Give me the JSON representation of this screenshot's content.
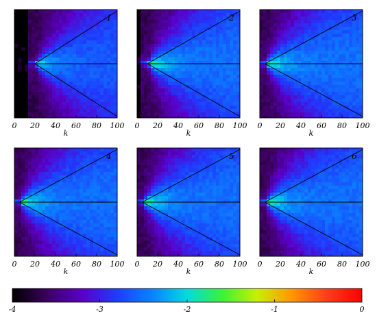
{
  "chart_data": {
    "type": "heatmap",
    "layout": "2x3 panel grid with shared colorbar",
    "panels": [
      {
        "label": "1",
        "xlabel": "k",
        "xticks": [
          "0",
          "20",
          "40",
          "60",
          "80",
          "100"
        ]
      },
      {
        "label": "2",
        "xlabel": "k",
        "xticks": [
          "0",
          "20",
          "40",
          "60",
          "80",
          "100"
        ]
      },
      {
        "label": "3",
        "xlabel": "k",
        "xticks": [
          "0",
          "20",
          "40",
          "60",
          "80",
          "100"
        ]
      },
      {
        "label": "4",
        "xlabel": "k",
        "xticks": [
          "0",
          "20",
          "40",
          "60",
          "80",
          "100"
        ]
      },
      {
        "label": "5",
        "xlabel": "k",
        "xticks": [
          "0",
          "20",
          "40",
          "60",
          "80",
          "100"
        ]
      },
      {
        "label": "6",
        "xlabel": "k",
        "xticks": [
          "0",
          "20",
          "40",
          "60",
          "80",
          "100"
        ]
      }
    ],
    "xlim": [
      0,
      100
    ],
    "guide_lines": {
      "horizontal": "center line",
      "wedge": "two diagonal lines opening from center to the right"
    },
    "apex_x": [
      20,
      10,
      5,
      5,
      5,
      5
    ],
    "colorbar": {
      "ticks": [
        "-4",
        "-3",
        "-2",
        "-1",
        "0"
      ],
      "range": [
        -4,
        0
      ],
      "colors": [
        "#000000",
        "#3c0060",
        "#5a00c8",
        "#1e3cff",
        "#0a82ff",
        "#00dcdc",
        "#3cf03c",
        "#c8f000",
        "#ff9600",
        "#ff3c1e",
        "#ff0000"
      ]
    }
  }
}
